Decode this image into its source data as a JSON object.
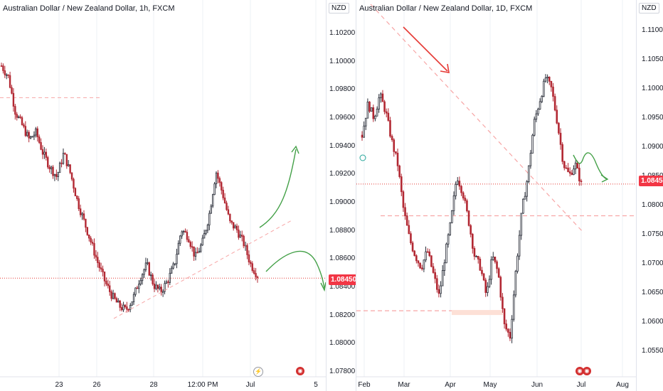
{
  "left_chart": {
    "title": "Australian Dollar / New Zealand Dollar, 1h, FXCM",
    "price_label": "1.08450",
    "x_ticks": [
      "23",
      "26",
      "28",
      "12:00 PM",
      "Jul",
      "5"
    ]
  },
  "right_chart": {
    "title": "Australian Dollar / New Zealand Dollar, 1D, FXCM",
    "currency": "NZD",
    "price_label": "1.08450",
    "x_ticks": [
      "Feb",
      "Mar",
      "Apr",
      "May",
      "Jun",
      "Jul",
      "Aug"
    ]
  },
  "middle_axis": {
    "currency": "NZD",
    "ticks": [
      "1.10200",
      "1.10000",
      "1.09800",
      "1.09600",
      "1.09400",
      "1.09200",
      "1.09000",
      "1.08800",
      "1.08600",
      "1.08400",
      "1.08200",
      "1.08000",
      "1.07800"
    ]
  },
  "right_axis": {
    "ticks": [
      "1.11000",
      "1.10500",
      "1.10000",
      "1.09500",
      "1.09000",
      "1.08500",
      "1.08000",
      "1.07500",
      "1.07000",
      "1.06500",
      "1.06000",
      "1.05500"
    ]
  },
  "colors": {
    "up": "#26a69a",
    "down": "#ef5350",
    "candle_dark": "#2a2e39",
    "candle_red": "#b22833",
    "dashed": "#f7a6a6",
    "arrow_red": "#e53935",
    "arrow_green": "#43a047",
    "badge": "#f23645",
    "grid": "#eef0f4"
  },
  "icons": [
    "lightning-icon",
    "earnings-icon",
    "dividend-icon"
  ],
  "chart_data": [
    {
      "type": "candlestick",
      "title": "Australian Dollar / New Zealand Dollar, 1h, FXCM",
      "xlabel": "",
      "ylabel": "",
      "ylim": [
        1.0775,
        1.103
      ],
      "x_categories": [
        "23",
        "26",
        "28",
        "12:00 PM",
        "Jul",
        "5"
      ],
      "close_path": [
        1.0998,
        1.099,
        1.0965,
        1.0955,
        1.0945,
        1.095,
        1.0935,
        1.0925,
        1.0918,
        1.0935,
        1.092,
        1.09,
        1.0885,
        1.087,
        1.0855,
        1.0842,
        1.0832,
        1.0825,
        1.0822,
        1.083,
        1.0845,
        1.0855,
        1.084,
        1.0835,
        1.0843,
        1.0855,
        1.088,
        1.0875,
        1.086,
        1.087,
        1.089,
        1.0922,
        1.0905,
        1.0885,
        1.088,
        1.087,
        1.0855,
        1.0847
      ],
      "last_price": 1.0845,
      "annotations": {
        "resistance_dashed": 1.0975,
        "last_price_line": 1.0845,
        "trendline": [
          [
            0.38,
            1.0822
          ],
          [
            0.91,
            1.0878
          ]
        ]
      }
    },
    {
      "type": "candlestick",
      "title": "Australian Dollar / New Zealand Dollar, 1D, FXCM",
      "xlabel": "",
      "ylabel": "",
      "ylim": [
        1.0535,
        1.114
      ],
      "x_categories": [
        "Feb",
        "Mar",
        "Apr",
        "May",
        "Jun",
        "Jul",
        "Aug"
      ],
      "close_path": [
        1.093,
        1.0985,
        1.096,
        1.1,
        1.097,
        1.092,
        1.088,
        1.08,
        1.075,
        1.072,
        1.07,
        1.073,
        1.069,
        1.065,
        1.072,
        1.078,
        1.086,
        1.083,
        1.078,
        1.072,
        1.07,
        1.065,
        1.072,
        1.069,
        1.06,
        1.058,
        1.07,
        1.08,
        1.086,
        1.095,
        1.099,
        1.103,
        1.101,
        1.095,
        1.088,
        1.086,
        1.088,
        1.0845
      ],
      "last_price": 1.0845,
      "annotations": {
        "dashed_levels": [
          1.079,
          1.0625
        ],
        "last_price_line": 1.0845,
        "descending_trendline_start": [
          "Feb",
          1.113
        ],
        "descending_trendline_end": [
          "Jul",
          1.076
        ]
      }
    }
  ]
}
